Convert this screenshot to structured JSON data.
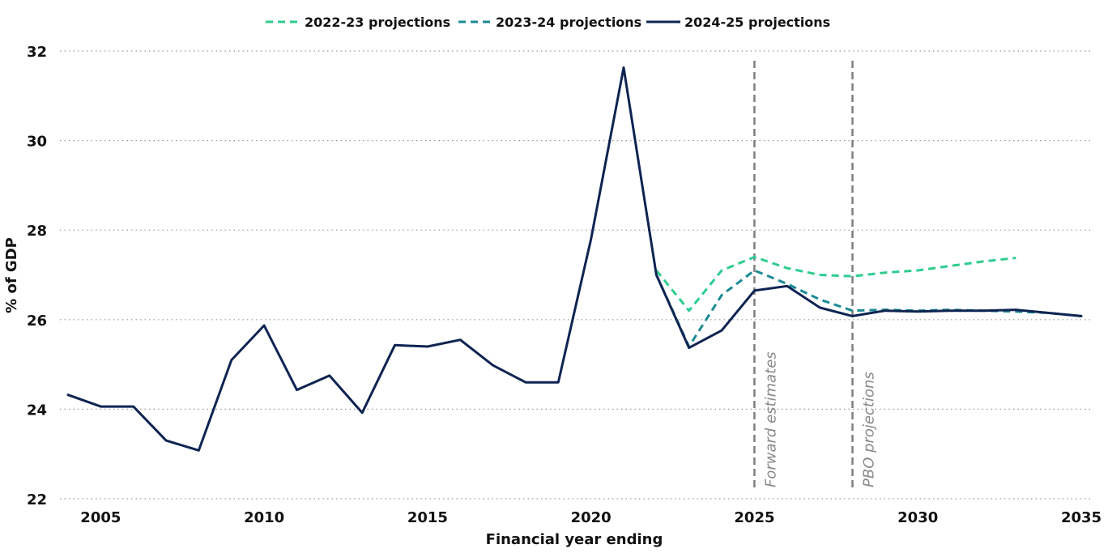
{
  "chart_data": {
    "type": "line",
    "title": "",
    "xlabel": "Financial year ending",
    "ylabel": "% of GDP",
    "xlim": [
      2004,
      2035
    ],
    "ylim": [
      22,
      32
    ],
    "x_ticks": [
      2005,
      2010,
      2015,
      2020,
      2025,
      2030,
      2035
    ],
    "y_ticks": [
      22,
      24,
      26,
      28,
      30,
      32
    ],
    "grid": "horizontal dotted",
    "legend_position": "top-center",
    "series": [
      {
        "name": "2022-23 projections",
        "color": "#2ECC8F",
        "dash": true,
        "x": [
          2022,
          2023,
          2024,
          2025,
          2026,
          2027,
          2028,
          2029,
          2030,
          2031,
          2032,
          2033
        ],
        "y": [
          27.1,
          26.2,
          27.1,
          27.4,
          27.15,
          27.0,
          26.97,
          27.05,
          27.1,
          27.2,
          27.3,
          27.38
        ]
      },
      {
        "name": "2023-24 projections",
        "color": "#1B8A95",
        "dash": true,
        "x": [
          2022,
          2023,
          2024,
          2025,
          2026,
          2027,
          2028,
          2029,
          2030,
          2031,
          2032,
          2033,
          2034,
          2035
        ],
        "y": [
          27.0,
          25.4,
          26.55,
          27.1,
          26.8,
          26.45,
          26.2,
          26.22,
          26.2,
          26.22,
          26.2,
          26.18,
          26.15,
          26.08
        ]
      },
      {
        "name": "2024-25 projections",
        "color": "#0E2452",
        "dash": false,
        "x": [
          2004,
          2005,
          2006,
          2007,
          2008,
          2009,
          2010,
          2011,
          2012,
          2013,
          2014,
          2015,
          2016,
          2017,
          2018,
          2019,
          2020,
          2021,
          2022,
          2023,
          2024,
          2025,
          2026,
          2027,
          2028,
          2029,
          2030,
          2031,
          2032,
          2033,
          2034,
          2035
        ],
        "y": [
          24.32,
          24.06,
          24.06,
          23.3,
          23.08,
          25.1,
          25.87,
          24.43,
          24.75,
          23.92,
          25.43,
          25.4,
          25.55,
          24.98,
          24.6,
          24.6,
          27.8,
          31.63,
          27.0,
          25.37,
          25.76,
          26.65,
          26.75,
          26.27,
          26.08,
          26.2,
          26.18,
          26.2,
          26.2,
          26.22,
          26.15,
          26.08
        ]
      }
    ],
    "annotations": [
      {
        "x": 2025,
        "label": "Forward estimates"
      },
      {
        "x": 2028,
        "label": "PBO projections"
      }
    ]
  }
}
